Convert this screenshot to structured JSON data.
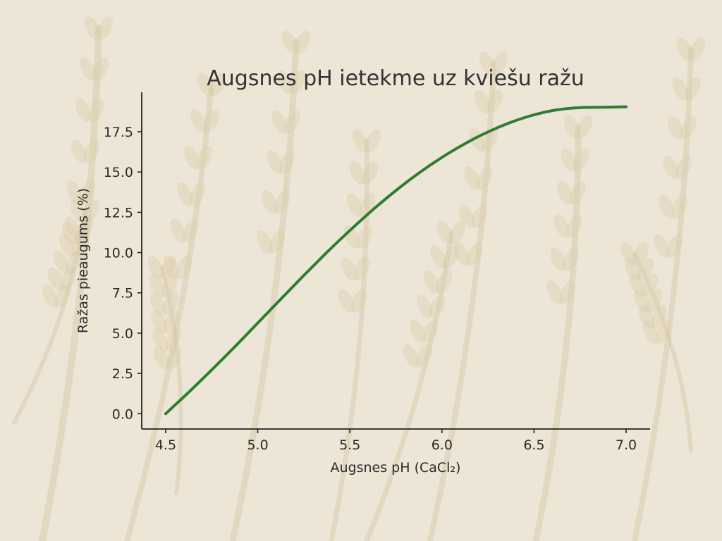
{
  "chart_data": {
    "type": "line",
    "title": "Augsnes pH ietekme uz kviešu ražu",
    "xlabel": "Augsnes pH (CaCl₂)",
    "ylabel": "Ražas pieaugums (%)",
    "xlim": [
      4.37,
      7.13
    ],
    "ylim": [
      -0.95,
      19.95
    ],
    "xticks": [
      "4.5",
      "5.0",
      "5.5",
      "6.0",
      "6.5",
      "7.0"
    ],
    "yticks": [
      "0.0",
      "2.5",
      "5.0",
      "7.5",
      "10.0",
      "12.5",
      "15.0",
      "17.5"
    ],
    "grid": false,
    "legend": "none",
    "line_color": "#2e7d32",
    "series": [
      {
        "x": [
          4.5,
          4.625,
          4.75,
          4.875,
          5.0,
          5.125,
          5.25,
          5.375,
          5.5,
          5.625,
          5.75,
          5.875,
          6.0,
          6.125,
          6.25,
          6.375,
          6.5,
          6.625,
          6.75,
          6.875,
          7.0
        ],
        "values": [
          0.0,
          1.33,
          2.72,
          4.15,
          5.63,
          7.11,
          8.58,
          10.01,
          11.37,
          12.66,
          13.85,
          14.94,
          15.91,
          16.76,
          17.49,
          18.09,
          18.55,
          18.86,
          19.0,
          19.02,
          19.05
        ]
      }
    ]
  }
}
